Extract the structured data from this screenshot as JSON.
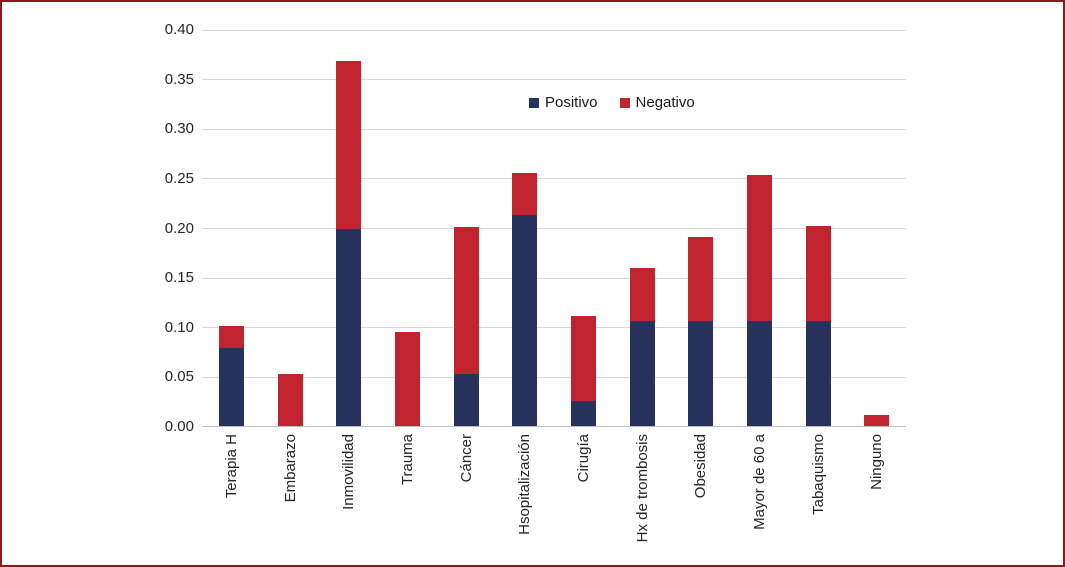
{
  "frame": {
    "border_color": "#8a1a1e",
    "background": "#ffffff"
  },
  "legend": {
    "items": [
      {
        "label": "Positivo",
        "color": "#27335c"
      },
      {
        "label": "Negativo",
        "color": "#c1242e"
      }
    ]
  },
  "colors": {
    "gridline": "#d9d9d9",
    "axis_line": "#bfbfbf",
    "tick_text": "#262626"
  },
  "chart_data": {
    "type": "bar",
    "stacked": true,
    "title": "",
    "xlabel": "",
    "ylabel": "",
    "grid": true,
    "legend_position": "top-center-inside",
    "ylim": [
      0,
      0.4
    ],
    "ytick_step": 0.05,
    "ytick_labels": [
      "0.00",
      "0.05",
      "0.10",
      "0.15",
      "0.20",
      "0.25",
      "0.30",
      "0.35",
      "0.40"
    ],
    "categories": [
      "Terapia H",
      "Embarazo",
      "Inmovilidad",
      "Trauma",
      "Cáncer",
      "Hsopitalización",
      "Cirugía",
      "Hx de trombosis",
      "Obesidad",
      "Mayor de 60 a",
      "Tabaquismo",
      "Ninguno"
    ],
    "series": [
      {
        "name": "Positivo",
        "color": "#27335c",
        "values": [
          0.079,
          0,
          0.199,
          0,
          0.053,
          0.213,
          0.025,
          0.106,
          0.106,
          0.106,
          0.106,
          0
        ]
      },
      {
        "name": "Negativo",
        "color": "#c1242e",
        "values": [
          0.022,
          0.053,
          0.17,
          0.095,
          0.148,
          0.043,
          0.086,
          0.054,
          0.085,
          0.148,
          0.096,
          0.011
        ]
      }
    ],
    "stack_totals": [
      0.101,
      0.053,
      0.369,
      0.095,
      0.201,
      0.256,
      0.111,
      0.16,
      0.191,
      0.254,
      0.202,
      0.011
    ]
  }
}
